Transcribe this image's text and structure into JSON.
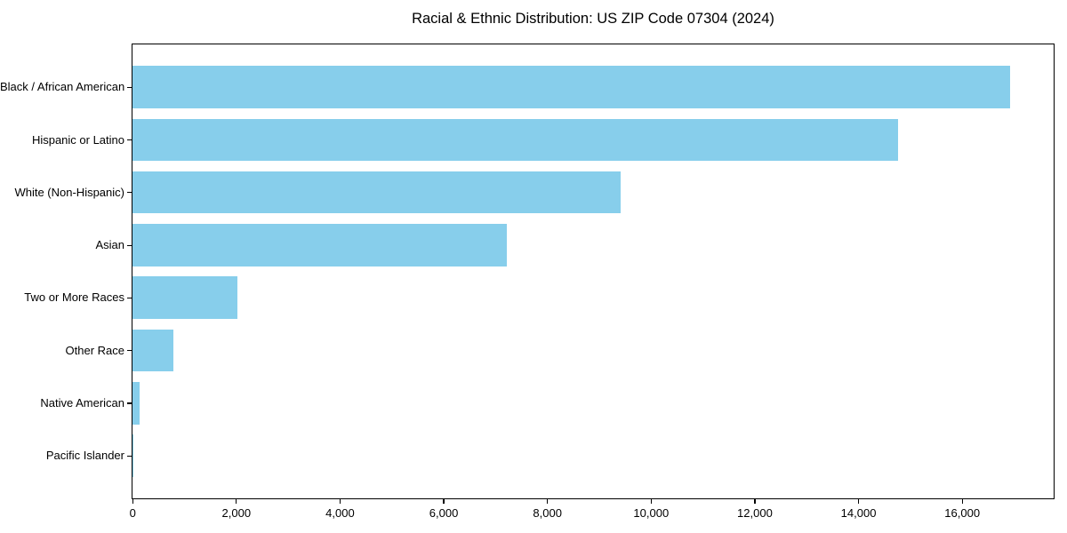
{
  "chart_data": {
    "type": "bar",
    "orientation": "horizontal",
    "title": "Racial & Ethnic Distribution: US ZIP Code 07304 (2024)",
    "categories": [
      "Black / African American",
      "Hispanic or Latino",
      "White (Non-Hispanic)",
      "Asian",
      "Two or More Races",
      "Other Race",
      "Native American",
      "Pacific Islander"
    ],
    "values": [
      16930,
      14770,
      9420,
      7220,
      2020,
      790,
      140,
      20
    ],
    "xlabel": "",
    "ylabel": "",
    "xlim": [
      0,
      17760
    ],
    "xticks": [
      0,
      2000,
      4000,
      6000,
      8000,
      10000,
      12000,
      14000,
      16000
    ],
    "xtick_labels": [
      "0",
      "2,000",
      "4,000",
      "6,000",
      "8,000",
      "10,000",
      "12,000",
      "14,000",
      "16,000"
    ],
    "bar_color": "#87CEEB",
    "axis_color": "#000000",
    "text_color": "#000000",
    "background_color": "#ffffff",
    "grid": false,
    "legend_position": "none"
  }
}
